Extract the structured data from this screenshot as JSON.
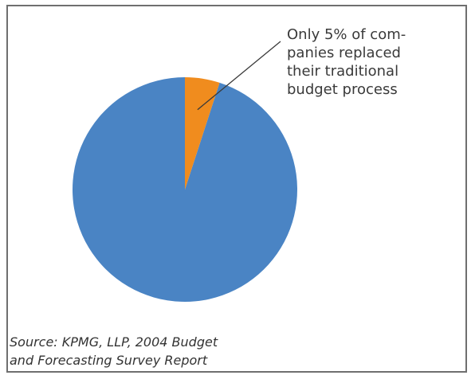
{
  "chart_data": {
    "type": "pie",
    "title": "",
    "slices": [
      {
        "label": "",
        "value": 95,
        "color": "#4a84c4"
      },
      {
        "label": "",
        "value": 5,
        "color": "#f08c1e"
      }
    ],
    "start": "top",
    "direction": "counterclockwise",
    "annotation": {
      "lines": [
        "Only 5% of com-",
        "panies replaced",
        "their traditional",
        "budget process"
      ],
      "points_to": "5% slice"
    },
    "source": {
      "lines": [
        "Source:  KPMG, LLP, 2004 Budget",
        "and Forecasting Survey Report"
      ]
    }
  },
  "colors": {
    "frame": "#6f6f6f",
    "pointer_line": "#3a3a3a",
    "text": "#3a3a3a"
  }
}
